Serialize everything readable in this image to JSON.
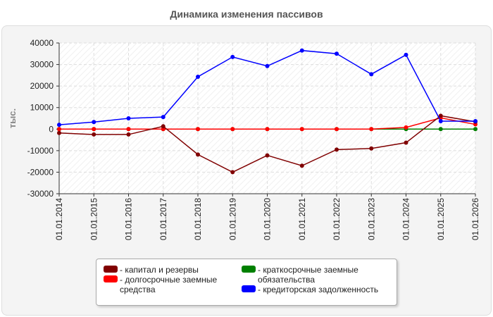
{
  "chart_data": {
    "type": "line",
    "title": "Динамика изменения пассивов",
    "ylabel": "тыс.",
    "xlabel": "",
    "ylim": [
      -30000,
      40000
    ],
    "yticks": [
      40000,
      30000,
      20000,
      10000,
      0,
      -10000,
      -20000,
      -30000
    ],
    "grid": true,
    "legend_position": "bottom",
    "categories": [
      "01.01.2014",
      "01.01.2015",
      "01.01.2016",
      "01.01.2017",
      "01.01.2018",
      "01.01.2019",
      "01.01.2020",
      "01.01.2021",
      "01.01.2022",
      "01.01.2023",
      "01.01.2024",
      "01.01.2025",
      "01.01.2026"
    ],
    "series": [
      {
        "name": "капитал и резервы",
        "color": "#800000",
        "values": [
          -1800,
          -2500,
          -2500,
          1300,
          -11800,
          -20000,
          -12200,
          -17000,
          -9500,
          -9000,
          -6300,
          6200,
          3400
        ]
      },
      {
        "name": "долгосрочные заемные средства",
        "color": "#ff0000",
        "values": [
          0,
          0,
          0,
          0,
          0,
          0,
          0,
          0,
          0,
          0,
          800,
          5200,
          2200
        ]
      },
      {
        "name": "краткосрочные заемные обязательства",
        "color": "#008000",
        "values": [
          0,
          0,
          0,
          0,
          0,
          0,
          0,
          0,
          0,
          0,
          0,
          0,
          0
        ]
      },
      {
        "name": "кредиторская задолженность",
        "color": "#0000ff",
        "values": [
          2000,
          3300,
          5000,
          5600,
          24300,
          33500,
          29300,
          36500,
          35000,
          25500,
          34500,
          3700,
          3700
        ]
      }
    ]
  }
}
